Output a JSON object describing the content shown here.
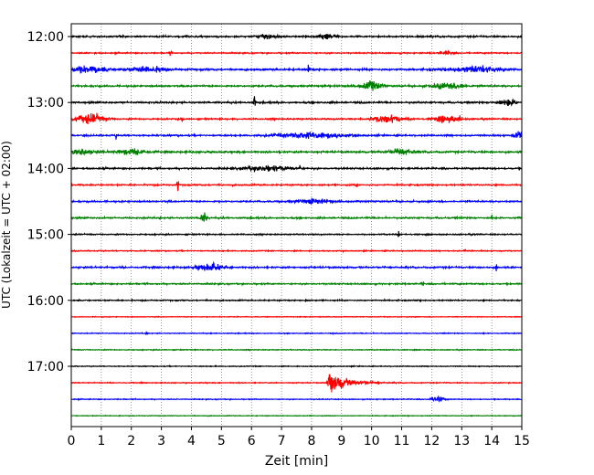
{
  "chart_data": {
    "type": "line",
    "title": "",
    "xlabel": "Zeit  [min]",
    "ylabel": "UTC (Lokalzeit = UTC + 02:00)",
    "xlim": [
      0,
      15
    ],
    "x_ticks": [
      0,
      1,
      2,
      3,
      4,
      5,
      6,
      7,
      8,
      9,
      10,
      11,
      12,
      13,
      14,
      15
    ],
    "y_tick_labels": [
      "12:00",
      "13:00",
      "14:00",
      "15:00",
      "16:00",
      "17:00"
    ],
    "trace_interval_min": 15,
    "grid": "vertical dotted at each minute",
    "color_cycle": [
      "#000000",
      "#ff0000",
      "#0000ff",
      "#008000"
    ],
    "traces": [
      {
        "start": "12:00",
        "color": "#000000",
        "noise": 0.9,
        "events": [
          {
            "t": 6.5,
            "amp": 2.0,
            "dur": 0.6
          },
          {
            "t": 8.5,
            "amp": 2.6,
            "dur": 0.5
          },
          {
            "t": 12.4,
            "amp": 2.5,
            "dur": 0.05
          }
        ]
      },
      {
        "start": "12:15",
        "color": "#ff0000",
        "noise": 0.7,
        "events": [
          {
            "t": 3.3,
            "amp": 2.5,
            "dur": 0.05
          },
          {
            "t": 12.5,
            "amp": 1.5,
            "dur": 0.4
          }
        ]
      },
      {
        "start": "12:30",
        "color": "#0000ff",
        "noise": 1.1,
        "events": [
          {
            "t": 0.5,
            "amp": 3.0,
            "dur": 1.2
          },
          {
            "t": 2.5,
            "amp": 3.0,
            "dur": 1.2
          },
          {
            "t": 7.9,
            "amp": 9.0,
            "dur": 0.05
          },
          {
            "t": 13.5,
            "amp": 3.0,
            "dur": 1.5
          }
        ]
      },
      {
        "start": "12:45",
        "color": "#008000",
        "noise": 1.0,
        "events": [
          {
            "t": 10.0,
            "amp": 4.5,
            "dur": 0.6
          },
          {
            "t": 12.5,
            "amp": 3.0,
            "dur": 1.0
          },
          {
            "t": 13.0,
            "amp": 5.5,
            "dur": 0.05
          }
        ]
      },
      {
        "start": "13:00",
        "color": "#000000",
        "noise": 1.0,
        "events": [
          {
            "t": 6.1,
            "amp": 10.0,
            "dur": 0.05
          },
          {
            "t": 14.5,
            "amp": 3.0,
            "dur": 0.6
          }
        ]
      },
      {
        "start": "13:15",
        "color": "#ff0000",
        "noise": 0.8,
        "events": [
          {
            "t": 0.6,
            "amp": 4.5,
            "dur": 1.0
          },
          {
            "t": 3.7,
            "amp": 3.0,
            "dur": 0.05
          },
          {
            "t": 10.5,
            "amp": 3.5,
            "dur": 1.0
          },
          {
            "t": 12.5,
            "amp": 3.0,
            "dur": 0.8
          },
          {
            "t": 12.95,
            "amp": 5.0,
            "dur": 0.05
          }
        ]
      },
      {
        "start": "13:30",
        "color": "#0000ff",
        "noise": 0.9,
        "events": [
          {
            "t": 1.5,
            "amp": 3.0,
            "dur": 0.05
          },
          {
            "t": 8.0,
            "amp": 3.0,
            "dur": 2.0
          },
          {
            "t": 14.9,
            "amp": 4.0,
            "dur": 0.3
          }
        ]
      },
      {
        "start": "13:45",
        "color": "#008000",
        "noise": 1.0,
        "events": [
          {
            "t": 0.3,
            "amp": 3.0,
            "dur": 0.8
          },
          {
            "t": 2.0,
            "amp": 2.5,
            "dur": 1.0
          },
          {
            "t": 11.0,
            "amp": 3.0,
            "dur": 0.8
          }
        ]
      },
      {
        "start": "14:00",
        "color": "#000000",
        "noise": 0.9,
        "events": [
          {
            "t": 7.6,
            "amp": 6.0,
            "dur": 0.05
          },
          {
            "t": 6.5,
            "amp": 2.5,
            "dur": 1.5
          }
        ]
      },
      {
        "start": "14:15",
        "color": "#ff0000",
        "noise": 0.8,
        "events": [
          {
            "t": 3.55,
            "amp": 10.0,
            "dur": 0.05
          },
          {
            "t": 9.5,
            "amp": 2.5,
            "dur": 0.05
          }
        ]
      },
      {
        "start": "14:30",
        "color": "#0000ff",
        "noise": 0.9,
        "events": [
          {
            "t": 8.0,
            "amp": 2.5,
            "dur": 1.0
          }
        ]
      },
      {
        "start": "14:45",
        "color": "#008000",
        "noise": 0.9,
        "events": [
          {
            "t": 4.4,
            "amp": 6.0,
            "dur": 0.2
          },
          {
            "t": 14.0,
            "amp": 3.5,
            "dur": 0.05
          }
        ]
      },
      {
        "start": "15:00",
        "color": "#000000",
        "noise": 0.7,
        "events": [
          {
            "t": 10.9,
            "amp": 3.0,
            "dur": 0.05
          }
        ]
      },
      {
        "start": "15:15",
        "color": "#ff0000",
        "noise": 0.6,
        "events": [
          {
            "t": 13.1,
            "amp": 2.5,
            "dur": 0.05
          }
        ]
      },
      {
        "start": "15:30",
        "color": "#0000ff",
        "noise": 0.9,
        "events": [
          {
            "t": 4.6,
            "amp": 3.5,
            "dur": 0.8
          },
          {
            "t": 14.15,
            "amp": 4.5,
            "dur": 0.05
          }
        ]
      },
      {
        "start": "15:45",
        "color": "#008000",
        "noise": 0.8,
        "events": [
          {
            "t": 11.7,
            "amp": 3.5,
            "dur": 0.05
          }
        ]
      },
      {
        "start": "16:00",
        "color": "#000000",
        "noise": 0.7,
        "events": [
          {
            "t": 7.8,
            "amp": 2.0,
            "dur": 0.05
          }
        ]
      },
      {
        "start": "16:15",
        "color": "#ff0000",
        "noise": 0.4,
        "events": []
      },
      {
        "start": "16:30",
        "color": "#0000ff",
        "noise": 0.5,
        "events": [
          {
            "t": 2.5,
            "amp": 2.0,
            "dur": 0.05
          }
        ]
      },
      {
        "start": "16:45",
        "color": "#008000",
        "noise": 0.5,
        "events": []
      },
      {
        "start": "17:00",
        "color": "#000000",
        "noise": 0.5,
        "events": []
      },
      {
        "start": "17:15",
        "color": "#ff0000",
        "noise": 0.5,
        "events": [
          {
            "t": 8.6,
            "amp": 12.0,
            "dur": 1.4,
            "shape": "quake"
          }
        ]
      },
      {
        "start": "17:30",
        "color": "#0000ff",
        "noise": 0.5,
        "events": [
          {
            "t": 12.2,
            "amp": 2.5,
            "dur": 0.4
          }
        ]
      },
      {
        "start": "17:45",
        "color": "#008000",
        "noise": 0.4,
        "events": []
      }
    ]
  }
}
